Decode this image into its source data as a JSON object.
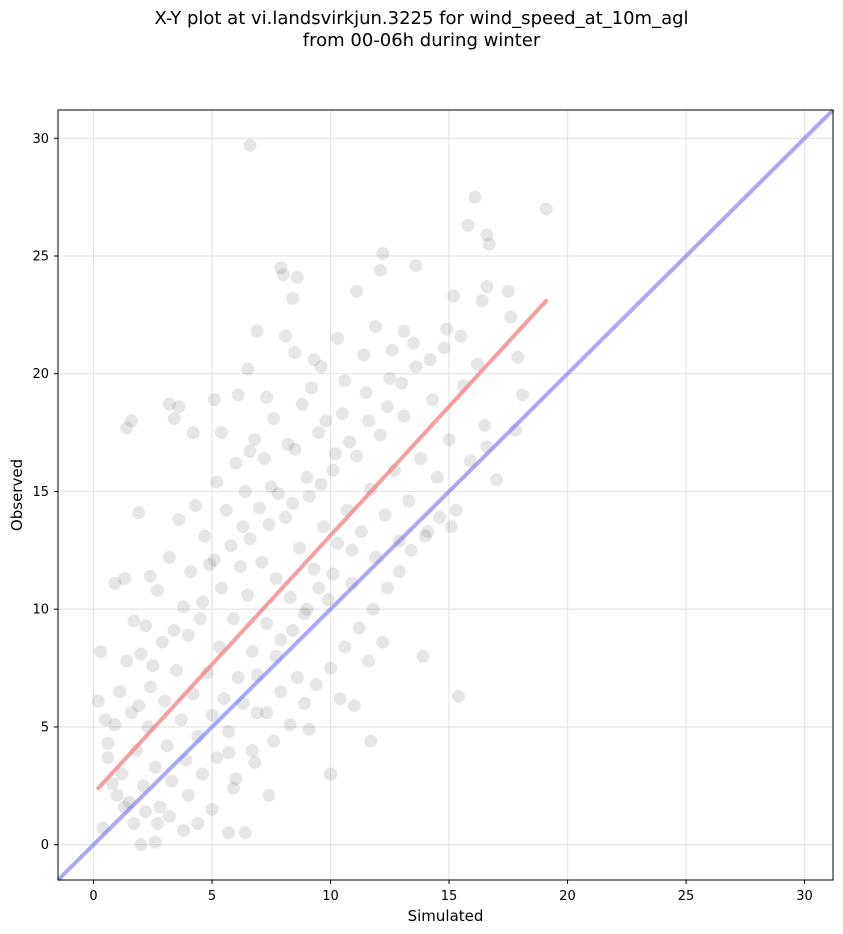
{
  "chart_data": {
    "type": "scatter",
    "title": "X-Y plot at vi.landsvirkjun.3225 for wind_speed_at_10m_agl",
    "subtitle": "from 00-06h during winter",
    "xlabel": "Simulated",
    "ylabel": "Observed",
    "xlim": [
      -1.5,
      31.2
    ],
    "ylim": [
      -1.5,
      31.2
    ],
    "xticks": [
      0,
      5,
      10,
      15,
      20,
      25,
      30
    ],
    "yticks": [
      0,
      5,
      10,
      15,
      20,
      25,
      30
    ],
    "grid": true,
    "point_color": "#404040",
    "point_opacity": 0.13,
    "points": [
      [
        0.3,
        8.2
      ],
      [
        0.6,
        4.3
      ],
      [
        0.9,
        11.1
      ],
      [
        1.3,
        11.3
      ],
      [
        1.4,
        17.7
      ],
      [
        1.6,
        18.0
      ],
      [
        1.9,
        14.1
      ],
      [
        2.4,
        11.4
      ],
      [
        3.2,
        18.7
      ],
      [
        3.4,
        18.1
      ],
      [
        3.6,
        18.6
      ],
      [
        4.2,
        17.5
      ],
      [
        5.1,
        18.9
      ],
      [
        5.4,
        17.5
      ],
      [
        6.1,
        19.1
      ],
      [
        6.6,
        16.7
      ],
      [
        6.6,
        29.7
      ],
      [
        6.5,
        20.2
      ],
      [
        6.9,
        21.8
      ],
      [
        7.3,
        19.0
      ],
      [
        7.9,
        24.5
      ],
      [
        8.0,
        24.2
      ],
      [
        8.6,
        24.1
      ],
      [
        8.4,
        23.2
      ],
      [
        8.1,
        21.6
      ],
      [
        8.5,
        20.9
      ],
      [
        9.3,
        20.6
      ],
      [
        9.6,
        20.3
      ],
      [
        10.3,
        21.5
      ],
      [
        11.1,
        23.5
      ],
      [
        12.1,
        24.4
      ],
      [
        12.2,
        25.1
      ],
      [
        13.6,
        24.6
      ],
      [
        11.9,
        22.0
      ],
      [
        12.6,
        21.0
      ],
      [
        13.1,
        21.8
      ],
      [
        15.2,
        23.3
      ],
      [
        15.8,
        26.3
      ],
      [
        16.1,
        27.5
      ],
      [
        16.6,
        25.9
      ],
      [
        16.7,
        25.5
      ],
      [
        17.5,
        23.5
      ],
      [
        16.6,
        23.7
      ],
      [
        16.4,
        23.1
      ],
      [
        17.6,
        22.4
      ],
      [
        19.1,
        27.0
      ],
      [
        17.9,
        20.7
      ],
      [
        18.1,
        19.1
      ],
      [
        17.8,
        17.6
      ],
      [
        16.6,
        16.9
      ],
      [
        17.0,
        15.5
      ],
      [
        15.4,
        6.3
      ],
      [
        15.1,
        13.5
      ],
      [
        13.9,
        8.0
      ],
      [
        11.7,
        4.4
      ],
      [
        10.0,
        3.0
      ],
      [
        7.4,
        2.1
      ],
      [
        6.4,
        0.5
      ],
      [
        5.7,
        0.5
      ],
      [
        2.0,
        0.0
      ],
      [
        2.6,
        0.1
      ],
      [
        0.4,
        0.7
      ],
      [
        0.2,
        6.1
      ],
      [
        0.5,
        5.3
      ],
      [
        1.0,
        2.1
      ],
      [
        1.2,
        3.0
      ],
      [
        1.5,
        1.8
      ],
      [
        1.8,
        4.0
      ],
      [
        2.1,
        2.5
      ],
      [
        2.3,
        5.0
      ],
      [
        2.6,
        3.3
      ],
      [
        2.8,
        1.6
      ],
      [
        3.0,
        6.1
      ],
      [
        3.1,
        4.2
      ],
      [
        3.3,
        2.7
      ],
      [
        3.5,
        7.4
      ],
      [
        3.7,
        5.3
      ],
      [
        3.9,
        3.6
      ],
      [
        4.0,
        8.9
      ],
      [
        4.2,
        6.4
      ],
      [
        4.4,
        4.6
      ],
      [
        4.6,
        10.3
      ],
      [
        4.8,
        7.3
      ],
      [
        5.0,
        5.5
      ],
      [
        5.1,
        12.1
      ],
      [
        5.3,
        8.4
      ],
      [
        5.5,
        6.2
      ],
      [
        5.7,
        3.9
      ],
      [
        5.9,
        9.6
      ],
      [
        6.1,
        7.1
      ],
      [
        6.3,
        13.5
      ],
      [
        6.5,
        10.6
      ],
      [
        6.7,
        8.2
      ],
      [
        6.9,
        5.6
      ],
      [
        7.1,
        12.0
      ],
      [
        7.3,
        9.4
      ],
      [
        7.5,
        15.2
      ],
      [
        7.7,
        11.3
      ],
      [
        7.9,
        8.7
      ],
      [
        8.1,
        13.9
      ],
      [
        8.3,
        10.5
      ],
      [
        8.5,
        16.8
      ],
      [
        8.7,
        12.6
      ],
      [
        8.9,
        9.8
      ],
      [
        9.1,
        14.8
      ],
      [
        9.3,
        11.7
      ],
      [
        9.5,
        17.5
      ],
      [
        9.7,
        13.5
      ],
      [
        9.9,
        10.4
      ],
      [
        10.1,
        15.9
      ],
      [
        10.3,
        12.8
      ],
      [
        10.5,
        18.3
      ],
      [
        10.7,
        14.2
      ],
      [
        10.9,
        11.1
      ],
      [
        11.1,
        16.5
      ],
      [
        11.3,
        13.3
      ],
      [
        11.5,
        19.2
      ],
      [
        11.7,
        15.1
      ],
      [
        11.9,
        12.2
      ],
      [
        12.1,
        17.4
      ],
      [
        12.3,
        14.0
      ],
      [
        12.5,
        19.8
      ],
      [
        12.7,
        15.9
      ],
      [
        12.9,
        12.9
      ],
      [
        13.1,
        18.2
      ],
      [
        13.3,
        14.6
      ],
      [
        13.6,
        20.3
      ],
      [
        13.8,
        16.4
      ],
      [
        14.1,
        13.3
      ],
      [
        14.3,
        18.9
      ],
      [
        14.5,
        15.6
      ],
      [
        14.8,
        21.1
      ],
      [
        15.0,
        17.2
      ],
      [
        15.3,
        14.2
      ],
      [
        15.6,
        19.5
      ],
      [
        15.9,
        16.3
      ],
      [
        16.2,
        20.4
      ],
      [
        16.5,
        17.8
      ],
      [
        2.2,
        9.3
      ],
      [
        2.5,
        7.6
      ],
      [
        2.7,
        10.8
      ],
      [
        3.2,
        12.2
      ],
      [
        3.4,
        9.1
      ],
      [
        3.6,
        13.8
      ],
      [
        4.1,
        11.6
      ],
      [
        4.3,
        14.4
      ],
      [
        4.7,
        13.1
      ],
      [
        5.2,
        15.4
      ],
      [
        5.6,
        14.2
      ],
      [
        6.0,
        16.2
      ],
      [
        6.4,
        15.0
      ],
      [
        6.8,
        17.2
      ],
      [
        7.2,
        16.4
      ],
      [
        7.6,
        18.1
      ],
      [
        8.2,
        17.0
      ],
      [
        8.8,
        18.7
      ],
      [
        9.2,
        19.4
      ],
      [
        9.8,
        18.0
      ],
      [
        10.6,
        19.7
      ],
      [
        11.4,
        20.8
      ],
      [
        1.1,
        6.5
      ],
      [
        1.4,
        7.8
      ],
      [
        1.7,
        9.5
      ],
      [
        1.9,
        5.9
      ],
      [
        2.0,
        8.1
      ],
      [
        2.4,
        6.7
      ],
      [
        2.9,
        8.6
      ],
      [
        3.8,
        10.1
      ],
      [
        4.5,
        9.6
      ],
      [
        4.9,
        11.9
      ],
      [
        5.4,
        10.9
      ],
      [
        5.8,
        12.7
      ],
      [
        6.2,
        11.8
      ],
      [
        6.6,
        13.0
      ],
      [
        7.0,
        14.3
      ],
      [
        7.4,
        13.6
      ],
      [
        7.8,
        14.9
      ],
      [
        8.4,
        14.5
      ],
      [
        9.0,
        15.6
      ],
      [
        9.6,
        15.3
      ],
      [
        10.2,
        16.6
      ],
      [
        10.8,
        17.1
      ],
      [
        11.6,
        18.0
      ],
      [
        12.4,
        18.6
      ],
      [
        13.0,
        19.6
      ],
      [
        13.5,
        21.3
      ],
      [
        14.2,
        20.6
      ],
      [
        14.9,
        21.9
      ],
      [
        15.5,
        21.6
      ],
      [
        6.0,
        2.8
      ],
      [
        6.8,
        3.5
      ],
      [
        7.6,
        4.4
      ],
      [
        8.3,
        5.1
      ],
      [
        8.9,
        6.0
      ],
      [
        9.4,
        6.8
      ],
      [
        10.0,
        7.5
      ],
      [
        10.6,
        8.4
      ],
      [
        11.2,
        9.2
      ],
      [
        11.8,
        10.0
      ],
      [
        12.4,
        10.9
      ],
      [
        12.9,
        11.6
      ],
      [
        13.4,
        12.5
      ],
      [
        14.0,
        13.1
      ],
      [
        14.6,
        13.9
      ],
      [
        10.4,
        6.2
      ],
      [
        11.0,
        5.9
      ],
      [
        11.6,
        7.8
      ],
      [
        12.2,
        8.6
      ],
      [
        9.1,
        4.9
      ],
      [
        8.6,
        7.1
      ],
      [
        7.9,
        6.5
      ],
      [
        7.3,
        5.6
      ],
      [
        6.7,
        4.0
      ],
      [
        5.9,
        2.4
      ],
      [
        5.0,
        1.5
      ],
      [
        4.4,
        0.9
      ],
      [
        3.8,
        0.6
      ],
      [
        3.2,
        1.2
      ],
      [
        2.7,
        0.9
      ],
      [
        2.2,
        1.4
      ],
      [
        1.7,
        0.9
      ],
      [
        1.3,
        1.6
      ],
      [
        0.8,
        2.6
      ],
      [
        0.6,
        3.7
      ],
      [
        0.9,
        5.1
      ],
      [
        1.6,
        5.6
      ],
      [
        4.0,
        2.1
      ],
      [
        4.6,
        3.0
      ],
      [
        5.2,
        3.7
      ],
      [
        5.7,
        4.8
      ],
      [
        6.3,
        6.0
      ],
      [
        6.9,
        7.2
      ],
      [
        7.7,
        8.0
      ],
      [
        8.4,
        9.1
      ],
      [
        9.0,
        10.0
      ],
      [
        9.5,
        10.9
      ],
      [
        10.1,
        11.5
      ],
      [
        10.9,
        12.5
      ]
    ],
    "fit_line": {
      "name": "",
      "color": "#f08080",
      "x": [
        0.2,
        19.1
      ],
      "y": [
        2.4,
        23.1
      ]
    },
    "identity_line": {
      "name": "",
      "color": "#7b7bf0",
      "x": [
        -1.5,
        31.2
      ],
      "y": [
        -1.5,
        31.2
      ]
    }
  }
}
